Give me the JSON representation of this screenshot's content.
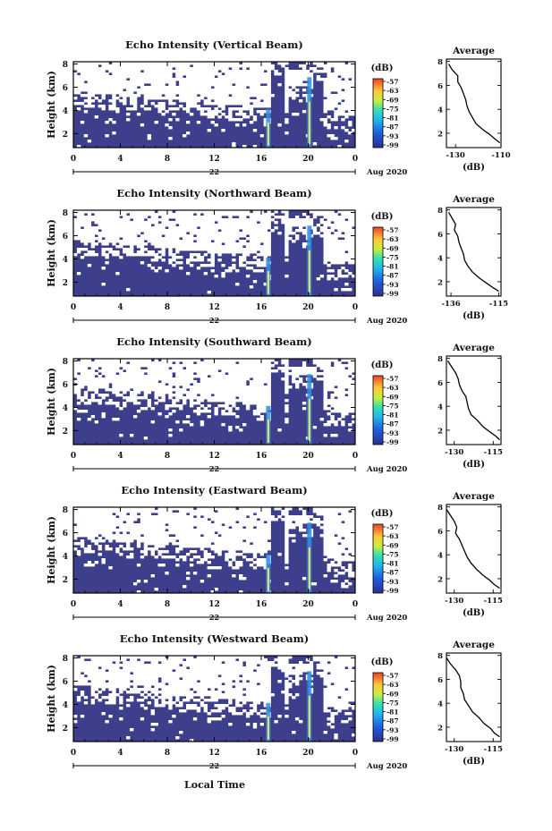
{
  "page": {
    "bottom_xlabel": "Local Time"
  },
  "colorbar": {
    "unit": "(dB)",
    "ticks": [
      "-57",
      "-63",
      "-69",
      "-75",
      "-81",
      "-87",
      "-93",
      "-99"
    ]
  },
  "time_axis": {
    "day_label": "22",
    "month_label": "Aug 2020"
  },
  "colors": {
    "background": "#3d3e8c",
    "storm_core": "#ffe14d",
    "storm_edge": "#2f8ee6",
    "line": "#000000"
  },
  "chart_data": [
    {
      "type": "heatmap",
      "title": "Echo Intensity (Vertical Beam)",
      "ylabel": "Height (km)",
      "x_ticks": [
        "0",
        "4",
        "8",
        "12",
        "16",
        "20",
        "0"
      ],
      "y_ticks": [
        "2",
        "4",
        "6",
        "8"
      ],
      "xlim": [
        0,
        24
      ],
      "ylim": [
        0.8,
        8.2
      ],
      "profile": {
        "title": "Average",
        "xlabel": "(dB)",
        "x_ticks": [
          "-130",
          "-110"
        ],
        "x_tick_values": [
          -130,
          -110
        ],
        "xlim": [
          -134,
          -110
        ],
        "y_ticks": [
          "2",
          "4",
          "6",
          "8"
        ],
        "heights": [
          7.8,
          7.3,
          6.8,
          6.3,
          5.8,
          5.3,
          4.8,
          4.3,
          3.8,
          3.3,
          2.8,
          2.3,
          1.9,
          1.5,
          1.2
        ],
        "values": [
          -133,
          -131.5,
          -129,
          -129,
          -127.5,
          -126.5,
          -125.5,
          -125,
          -124,
          -122.5,
          -121,
          -118,
          -115,
          -112.5,
          -110.5
        ]
      }
    },
    {
      "type": "heatmap",
      "title": "Echo Intensity (Northward Beam)",
      "ylabel": "Height (km)",
      "x_ticks": [
        "0",
        "4",
        "8",
        "12",
        "16",
        "20",
        "0"
      ],
      "y_ticks": [
        "2",
        "4",
        "6",
        "8"
      ],
      "xlim": [
        0,
        24
      ],
      "ylim": [
        0.8,
        8.2
      ],
      "profile": {
        "title": "Average",
        "xlabel": "(dB)",
        "x_ticks": [
          "-136",
          "-115"
        ],
        "x_tick_values": [
          -136,
          -115
        ],
        "xlim": [
          -138,
          -114
        ],
        "y_ticks": [
          "2",
          "4",
          "6",
          "8"
        ],
        "heights": [
          7.8,
          7.3,
          6.8,
          6.3,
          5.8,
          5.3,
          4.8,
          4.3,
          3.8,
          3.3,
          2.8,
          2.3,
          1.9,
          1.5,
          1.2
        ],
        "values": [
          -137,
          -135.5,
          -134,
          -134.5,
          -133,
          -132.5,
          -131.5,
          -130.5,
          -130,
          -128.5,
          -126.5,
          -123.5,
          -120.5,
          -117.5,
          -115
        ]
      }
    },
    {
      "type": "heatmap",
      "title": "Echo Intensity (Southward Beam)",
      "ylabel": "Height (km)",
      "x_ticks": [
        "0",
        "4",
        "8",
        "12",
        "16",
        "20",
        "0"
      ],
      "y_ticks": [
        "2",
        "4",
        "6",
        "8"
      ],
      "xlim": [
        0,
        24
      ],
      "ylim": [
        0.8,
        8.2
      ],
      "profile": {
        "title": "Average",
        "xlabel": "(dB)",
        "x_ticks": [
          "-130",
          "-115"
        ],
        "x_tick_values": [
          -130,
          -115
        ],
        "xlim": [
          -133,
          -112
        ],
        "y_ticks": [
          "2",
          "4",
          "6",
          "8"
        ],
        "heights": [
          7.8,
          7.3,
          6.8,
          6.3,
          5.8,
          5.3,
          4.8,
          4.3,
          3.8,
          3.3,
          2.8,
          2.3,
          1.9,
          1.5,
          1.2
        ],
        "values": [
          -132.5,
          -131,
          -129.5,
          -128.5,
          -128,
          -127,
          -125.5,
          -125,
          -124.5,
          -123.5,
          -121,
          -119,
          -116.5,
          -114,
          -112.5
        ]
      }
    },
    {
      "type": "heatmap",
      "title": "Echo Intensity (Eastward Beam)",
      "ylabel": "Height (km)",
      "x_ticks": [
        "0",
        "4",
        "8",
        "12",
        "16",
        "20",
        "0"
      ],
      "y_ticks": [
        "2",
        "4",
        "6",
        "8"
      ],
      "xlim": [
        0,
        24
      ],
      "ylim": [
        0.8,
        8.2
      ],
      "profile": {
        "title": "Average",
        "xlabel": "(dB)",
        "x_ticks": [
          "-130",
          "-115"
        ],
        "x_tick_values": [
          -130,
          -115
        ],
        "xlim": [
          -133,
          -112
        ],
        "y_ticks": [
          "2",
          "4",
          "6",
          "8"
        ],
        "heights": [
          7.8,
          7.3,
          6.8,
          6.3,
          5.8,
          5.3,
          4.8,
          4.3,
          3.8,
          3.3,
          2.8,
          2.3,
          1.9,
          1.5,
          1.2
        ],
        "values": [
          -133,
          -131.5,
          -130,
          -129,
          -129.5,
          -128,
          -127,
          -126,
          -125,
          -123.5,
          -121.5,
          -119,
          -116.5,
          -114.5,
          -112.5
        ]
      }
    },
    {
      "type": "heatmap",
      "title": "Echo Intensity (Westward Beam)",
      "ylabel": "Height (km)",
      "x_ticks": [
        "0",
        "4",
        "8",
        "12",
        "16",
        "20",
        "0"
      ],
      "y_ticks": [
        "2",
        "4",
        "6",
        "8"
      ],
      "xlim": [
        0,
        24
      ],
      "ylim": [
        0.8,
        8.2
      ],
      "profile": {
        "title": "Average",
        "xlabel": "(dB)",
        "x_ticks": [
          "-130",
          "-115"
        ],
        "x_tick_values": [
          -130,
          -115
        ],
        "xlim": [
          -133,
          -112
        ],
        "y_ticks": [
          "2",
          "4",
          "6",
          "8"
        ],
        "heights": [
          7.8,
          7.3,
          6.8,
          6.3,
          5.8,
          5.3,
          4.8,
          4.3,
          3.8,
          3.3,
          2.8,
          2.3,
          1.9,
          1.5,
          1.2
        ],
        "values": [
          -133,
          -131.5,
          -129.5,
          -128,
          -127.5,
          -127.5,
          -126.5,
          -126,
          -124.5,
          -123,
          -120.5,
          -118.5,
          -116,
          -114.5,
          -112.5
        ]
      }
    }
  ]
}
